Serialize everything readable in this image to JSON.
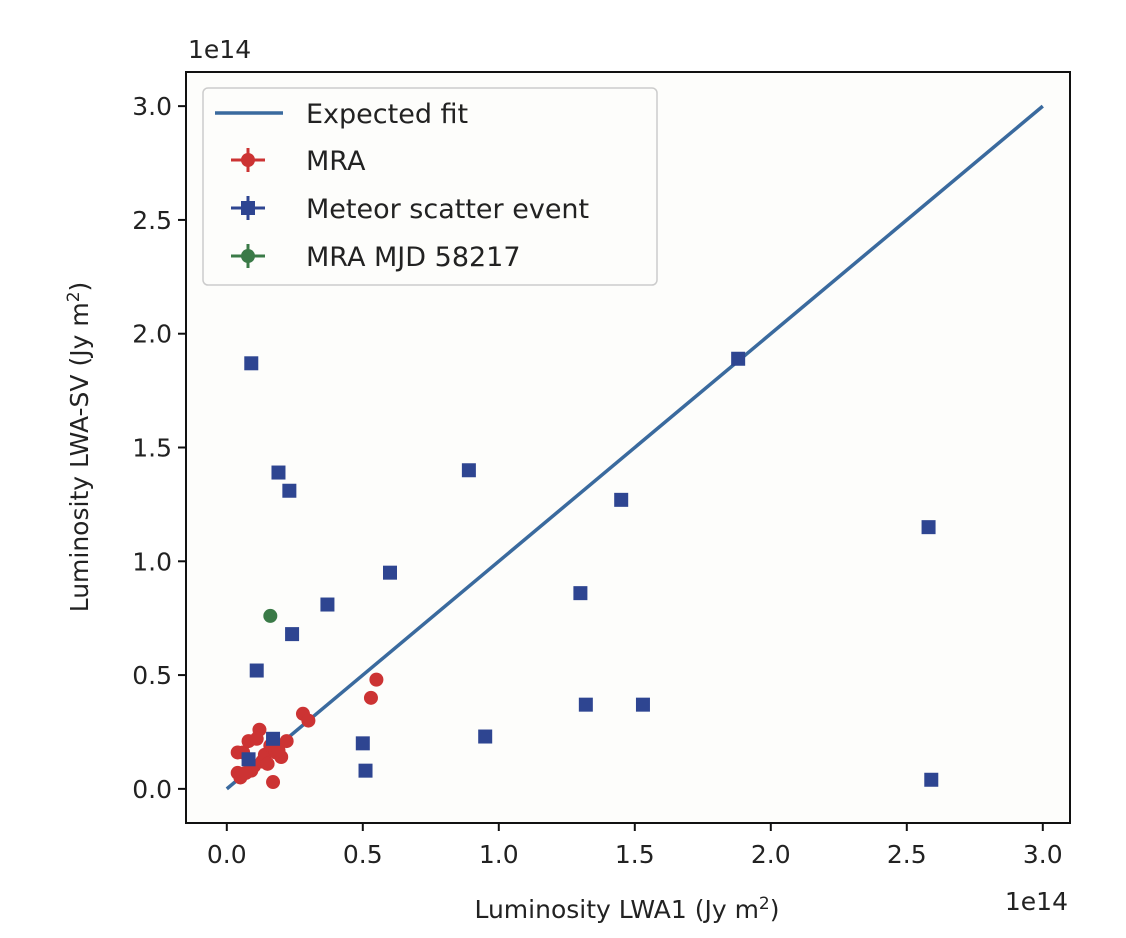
{
  "chart_data": {
    "type": "scatter",
    "xlabel": "Luminosity LWA1 (Jy m",
    "xlabel_sup": "2",
    "xlabel_end": ")",
    "ylabel": "Luminosity LWA-SV (Jy m",
    "ylabel_sup": "2",
    "ylabel_end": ")",
    "x_offset_label": "1e14",
    "y_offset_label": "1e14",
    "xlim": [
      -0.15,
      3.1
    ],
    "ylim": [
      -0.15,
      3.15
    ],
    "x_ticks": [
      0.0,
      0.5,
      1.0,
      1.5,
      2.0,
      2.5,
      3.0
    ],
    "x_tick_labels": [
      "0.0",
      "0.5",
      "1.0",
      "1.5",
      "2.0",
      "2.5",
      "3.0"
    ],
    "y_ticks": [
      0.0,
      0.5,
      1.0,
      1.5,
      2.0,
      2.5,
      3.0
    ],
    "y_tick_labels": [
      "0.0",
      "0.5",
      "1.0",
      "1.5",
      "2.0",
      "2.5",
      "3.0"
    ],
    "grid": false,
    "legend_position": "top-left",
    "colors": {
      "fit": "#3a6a9e",
      "mra": "#cc3333",
      "meteor": "#2e4591",
      "mra_58217": "#3a7a47",
      "background": "#fdfdfb"
    },
    "series": [
      {
        "name": "Expected fit",
        "kind": "line",
        "x": [
          0.0,
          3.0
        ],
        "y": [
          0.0,
          3.0
        ]
      },
      {
        "name": "MRA",
        "kind": "points",
        "marker": "circle",
        "x": [
          0.04,
          0.05,
          0.06,
          0.08,
          0.09,
          0.1,
          0.12,
          0.13,
          0.14,
          0.15,
          0.16,
          0.17,
          0.18,
          0.2,
          0.22,
          0.28,
          0.3,
          0.53,
          0.55,
          0.04,
          0.07,
          0.11,
          0.19
        ],
        "y": [
          0.07,
          0.05,
          0.16,
          0.21,
          0.08,
          0.1,
          0.26,
          0.12,
          0.15,
          0.11,
          0.19,
          0.03,
          0.16,
          0.14,
          0.21,
          0.33,
          0.3,
          0.4,
          0.48,
          0.16,
          0.07,
          0.22,
          0.17
        ]
      },
      {
        "name": "Meteor scatter event",
        "kind": "points",
        "marker": "square",
        "x": [
          0.09,
          0.19,
          0.23,
          0.89,
          1.45,
          1.88,
          2.58,
          0.6,
          0.37,
          1.3,
          0.24,
          0.11,
          1.32,
          1.53,
          0.5,
          0.95,
          0.51,
          2.59,
          0.08,
          0.17
        ],
        "y": [
          1.87,
          1.39,
          1.31,
          1.4,
          1.27,
          1.89,
          1.15,
          0.95,
          0.81,
          0.86,
          0.68,
          0.52,
          0.37,
          0.37,
          0.2,
          0.23,
          0.08,
          0.04,
          0.13,
          0.22
        ]
      },
      {
        "name": "MRA MJD 58217",
        "kind": "points",
        "marker": "circle",
        "x": [
          0.16
        ],
        "y": [
          0.76
        ]
      }
    ]
  }
}
